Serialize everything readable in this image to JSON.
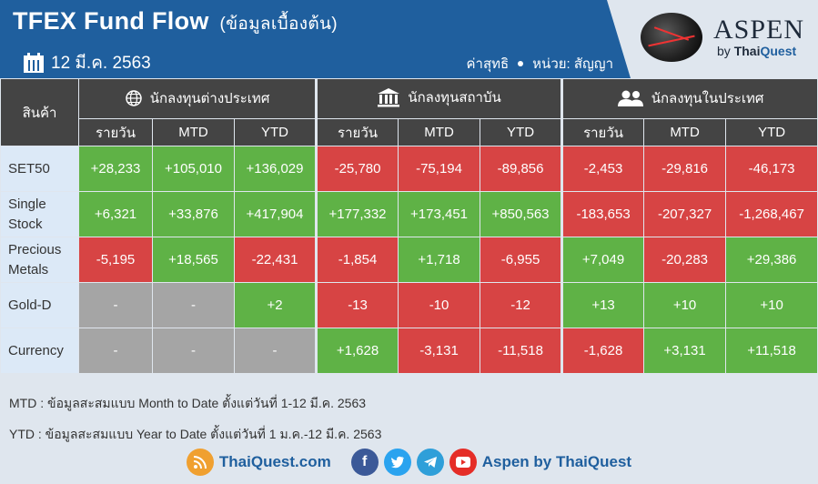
{
  "header": {
    "title": "TFEX Fund Flow",
    "subtitle": "(ข้อมูลเบื้องต้น)",
    "date": "12 มี.ค. 2563",
    "net_label": "ค่าสุทธิ",
    "unit_label": "หน่วย: สัญญา"
  },
  "brand": {
    "name": "ASPEN",
    "by": "by ",
    "thai": "Thai",
    "quest": "Quest"
  },
  "table": {
    "product_header": "สินค้า",
    "groups": [
      {
        "label": "นักลงทุนต่างประเทศ",
        "icon": "globe-icon"
      },
      {
        "label": "นักลงทุนสถาบัน",
        "icon": "institution-icon"
      },
      {
        "label": "นักลงทุนในประเทศ",
        "icon": "people-icon"
      }
    ],
    "sub_headers": [
      "รายวัน",
      "MTD",
      "YTD"
    ],
    "rows": [
      {
        "product": "SET50",
        "values": [
          "+28,233",
          "+105,010",
          "+136,029",
          "-25,780",
          "-75,194",
          "-89,856",
          "-2,453",
          "-29,816",
          "-46,173"
        ]
      },
      {
        "product": "Single Stock",
        "values": [
          "+6,321",
          "+33,876",
          "+417,904",
          "+177,332",
          "+173,451",
          "+850,563",
          "-183,653",
          "-207,327",
          "-1,268,467"
        ]
      },
      {
        "product": "Precious Metals",
        "values": [
          "-5,195",
          "+18,565",
          "-22,431",
          "-1,854",
          "+1,718",
          "-6,955",
          "+7,049",
          "-20,283",
          "+29,386"
        ]
      },
      {
        "product": "Gold-D",
        "values": [
          "-",
          "-",
          "+2",
          "-13",
          "-10",
          "-12",
          "+13",
          "+10",
          "+10"
        ]
      },
      {
        "product": "Currency",
        "values": [
          "-",
          "-",
          "-",
          "+1,628",
          "-3,131",
          "-11,518",
          "-1,628",
          "+3,131",
          "+11,518"
        ]
      }
    ]
  },
  "notes": {
    "mtd": "MTD : ข้อมูลสะสมแบบ Month to Date ตั้งแต่วันที่ 1-12 มี.ค. 2563",
    "ytd": "YTD : ข้อมูลสะสมแบบ Year to Date ตั้งแต่วันที่ 1 ม.ค.-12 มี.ค. 2563"
  },
  "footer": {
    "website": "ThaiQuest.com",
    "social_name": "Aspen by ThaiQuest",
    "colors": {
      "rss": "#f0a030",
      "facebook": "#3b5998",
      "twitter": "#2aa3ef",
      "telegram": "#2f9fd9",
      "youtube": "#e52d27"
    }
  },
  "colors": {
    "positive": "#5fb246",
    "negative": "#d74444",
    "empty": "#a5a5a5",
    "header_bg": "#1f5f9e"
  }
}
